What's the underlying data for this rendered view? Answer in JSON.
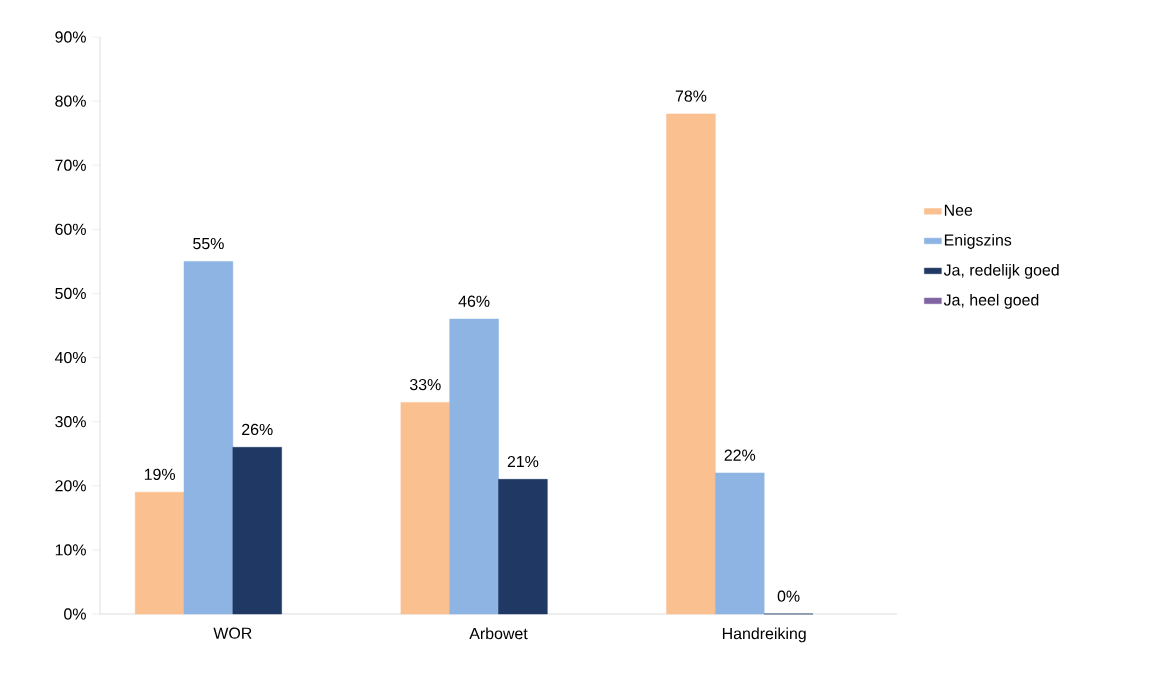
{
  "chart_data": {
    "type": "bar",
    "categories": [
      "WOR",
      "Arbowet",
      "Handreiking"
    ],
    "series": [
      {
        "name": "Nee",
        "color": "#fac090",
        "values": [
          19,
          33,
          78
        ],
        "value_labels": [
          "19%",
          "33%",
          "78%"
        ]
      },
      {
        "name": "Enigszins",
        "color": "#8eb4e3",
        "values": [
          55,
          46,
          22
        ],
        "value_labels": [
          "55%",
          "46%",
          "22%"
        ]
      },
      {
        "name": "Ja, redelijk goed",
        "color": "#1f3864",
        "values": [
          26,
          21,
          0
        ],
        "value_labels": [
          "26%",
          "21%",
          "0%"
        ]
      },
      {
        "name": "Ja, heel goed",
        "color": "#8064a2",
        "values": [
          null,
          null,
          null
        ]
      }
    ],
    "ylim": [
      0,
      90
    ],
    "yticks": [
      {
        "value": 0,
        "label": "0%"
      },
      {
        "value": 10,
        "label": "10%"
      },
      {
        "value": 20,
        "label": "20%"
      },
      {
        "value": 30,
        "label": "30%"
      },
      {
        "value": 40,
        "label": "40%"
      },
      {
        "value": 50,
        "label": "50%"
      },
      {
        "value": 60,
        "label": "60%"
      },
      {
        "value": 70,
        "label": "70%"
      },
      {
        "value": 80,
        "label": "80%"
      },
      {
        "value": 90,
        "label": "90%"
      }
    ],
    "grid": false,
    "legend": "right"
  }
}
